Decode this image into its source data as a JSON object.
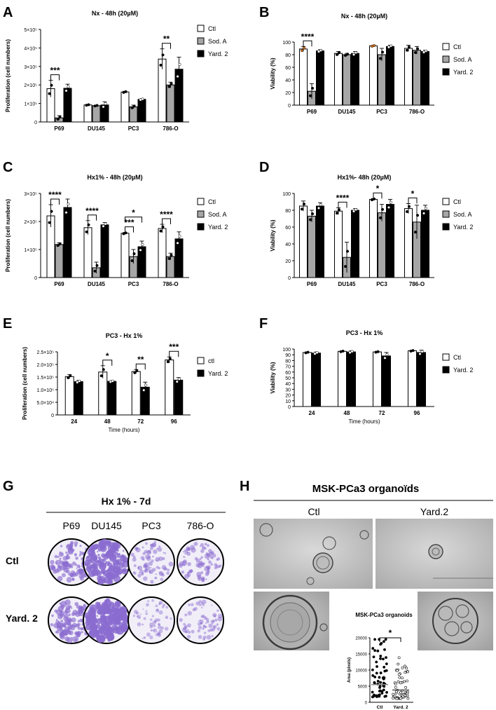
{
  "colors": {
    "ctl": "#ffffff",
    "soda": "#a6a6a6",
    "yard": "#000000",
    "dot_orange": "#e07b22",
    "crystal_violet": "#8a6bd0"
  },
  "chart_data": [
    {
      "panel": "A",
      "type": "bar",
      "title": "Nx - 48h (20µM)",
      "xlabel": "",
      "ylabel": "Proliferation (cell numbers)",
      "ylim": [
        0,
        500000
      ],
      "yticks": [
        "0",
        "1×10⁵",
        "2×10⁵",
        "3×10⁵",
        "4×10⁵",
        "5×10⁵"
      ],
      "categories": [
        "P69",
        "DU145",
        "PC3",
        "786-O"
      ],
      "legend": [
        "Ctl",
        "Sod. A",
        "Yard. 2"
      ],
      "legend_position": "right",
      "series": [
        {
          "name": "Ctl",
          "values": [
            180000,
            92000,
            162000,
            340000
          ],
          "err": [
            45000,
            3000,
            4000,
            55000
          ]
        },
        {
          "name": "Sod. A",
          "values": [
            22000,
            88000,
            82000,
            200000
          ],
          "err": [
            12000,
            3000,
            9000,
            15000
          ]
        },
        {
          "name": "Yard. 2",
          "values": [
            182000,
            92000,
            122000,
            285000
          ],
          "err": [
            22000,
            17000,
            4000,
            65000
          ]
        }
      ],
      "significance": [
        {
          "category": "P69",
          "label": "***",
          "pair": [
            0,
            1
          ]
        },
        {
          "category": "786-O",
          "label": "**",
          "pair": [
            0,
            1
          ]
        }
      ]
    },
    {
      "panel": "B",
      "type": "bar",
      "title": "Nx - 48h (20µM)",
      "xlabel": "",
      "ylabel": "Viability (%)",
      "ylim": [
        0,
        100
      ],
      "yticks": [
        "0",
        "20",
        "40",
        "60",
        "80",
        "100"
      ],
      "categories": [
        "P69",
        "DU145",
        "PC3",
        "786-O"
      ],
      "legend": [
        "Ctl",
        "Sod. A",
        "Yard. 2"
      ],
      "legend_position": "right",
      "series": [
        {
          "name": "Ctl",
          "values": [
            89,
            82,
            94,
            90
          ],
          "err": [
            4,
            3,
            1,
            5
          ]
        },
        {
          "name": "Sod. A",
          "values": [
            22,
            80,
            80,
            87
          ],
          "err": [
            12,
            2,
            10,
            6
          ]
        },
        {
          "name": "Yard. 2",
          "values": [
            86,
            82,
            93,
            85
          ],
          "err": [
            2,
            3,
            2,
            2
          ]
        }
      ],
      "significance": [
        {
          "category": "P69",
          "label": "****",
          "pair": [
            0,
            1
          ]
        }
      ]
    },
    {
      "panel": "C",
      "type": "bar",
      "title": "Hx1% - 48h (20µM)",
      "xlabel": "",
      "ylabel": "Proliferation (cell numbers)",
      "ylim": [
        0,
        300000
      ],
      "yticks": [
        "0",
        "1×10⁵",
        "2×10⁵",
        "3×10⁵"
      ],
      "categories": [
        "P69",
        "DU145",
        "PC3",
        "786-O"
      ],
      "legend": [
        "Ctl",
        "Sod. A",
        "Yard. 2"
      ],
      "legend_position": "right",
      "series": [
        {
          "name": "Ctl",
          "values": [
            220000,
            178000,
            158000,
            175000
          ],
          "err": [
            40000,
            25000,
            3000,
            15000
          ]
        },
        {
          "name": "Sod. A",
          "values": [
            118000,
            35000,
            75000,
            75000
          ],
          "err": [
            6000,
            20000,
            25000,
            12000
          ]
        },
        {
          "name": "Yard. 2",
          "values": [
            250000,
            188000,
            110000,
            138000
          ],
          "err": [
            30000,
            8000,
            20000,
            25000
          ]
        }
      ],
      "significance": [
        {
          "category": "P69",
          "label": "****",
          "pair": [
            0,
            1
          ]
        },
        {
          "category": "DU145",
          "label": "****",
          "pair": [
            0,
            1
          ]
        },
        {
          "category": "PC3",
          "label": "***",
          "pair": [
            0,
            1
          ]
        },
        {
          "category": "PC3",
          "label": "*",
          "pair": [
            0,
            2
          ]
        },
        {
          "category": "786-O",
          "label": "****",
          "pair": [
            0,
            1
          ]
        }
      ]
    },
    {
      "panel": "D",
      "type": "bar",
      "title": "Hx1%- 48h (20µM)",
      "xlabel": "",
      "ylabel": "Viability (%)",
      "ylim": [
        0,
        100
      ],
      "yticks": [
        "0",
        "20",
        "40",
        "60",
        "80",
        "100"
      ],
      "categories": [
        "P69",
        "DU145",
        "PC3",
        "786-O"
      ],
      "legend": [
        "Ctl",
        "Sod. A",
        "Yard. 2"
      ],
      "legend_position": "right",
      "series": [
        {
          "name": "Ctl",
          "values": [
            85,
            79,
            93,
            82
          ],
          "err": [
            6,
            4,
            1,
            6
          ]
        },
        {
          "name": "Sod. A",
          "values": [
            73,
            24,
            77,
            66
          ],
          "err": [
            7,
            18,
            10,
            20
          ]
        },
        {
          "name": "Yard. 2",
          "values": [
            85,
            80,
            87,
            80
          ],
          "err": [
            4,
            2,
            6,
            6
          ]
        }
      ],
      "significance": [
        {
          "category": "DU145",
          "label": "****",
          "pair": [
            0,
            1
          ]
        },
        {
          "category": "PC3",
          "label": "*",
          "pair": [
            0,
            1
          ]
        },
        {
          "category": "786-O",
          "label": "*",
          "pair": [
            0,
            1
          ]
        }
      ]
    },
    {
      "panel": "E",
      "type": "bar",
      "title": "PC3 - Hx 1%",
      "xlabel": "Time (hours)",
      "ylabel": "Proliferation (cell numbers)",
      "ylim": [
        0,
        250000
      ],
      "yticks": [
        "0",
        "5.0×10⁴",
        "1.0×10⁵",
        "1.5×10⁵",
        "2.0×10⁵",
        "2.5×10⁵"
      ],
      "categories": [
        "24",
        "48",
        "72",
        "96"
      ],
      "legend": [
        "ctl",
        "Yard. 2"
      ],
      "legend_position": "right",
      "series": [
        {
          "name": "ctl",
          "values": [
            152000,
            170000,
            172000,
            218000
          ],
          "err": [
            8000,
            25000,
            8000,
            12000
          ]
        },
        {
          "name": "Yard. 2",
          "values": [
            132000,
            133000,
            110000,
            138000
          ],
          "err": [
            5000,
            3000,
            20000,
            10000
          ]
        }
      ],
      "significance": [
        {
          "category": "48",
          "label": "*",
          "pair": [
            0,
            1
          ]
        },
        {
          "category": "72",
          "label": "**",
          "pair": [
            0,
            1
          ]
        },
        {
          "category": "96",
          "label": "***",
          "pair": [
            0,
            1
          ]
        }
      ]
    },
    {
      "panel": "F",
      "type": "bar",
      "title": "PC3 - Hx 1%",
      "xlabel": "Time (hours)",
      "ylabel": "Viability (%)",
      "ylim": [
        0,
        100
      ],
      "yticks": [
        "0",
        "10",
        "20",
        "30",
        "40",
        "50",
        "60",
        "70",
        "80",
        "90",
        "100"
      ],
      "categories": [
        "24",
        "48",
        "72",
        "96"
      ],
      "legend": [
        "Ctl",
        "Yard. 2"
      ],
      "legend_position": "right",
      "series": [
        {
          "name": "Ctl",
          "values": [
            94,
            96,
            95,
            97
          ],
          "err": [
            1,
            1,
            1,
            1
          ]
        },
        {
          "name": "Yard. 2",
          "values": [
            93,
            95,
            88,
            94
          ],
          "err": [
            2,
            2,
            6,
            4
          ]
        }
      ],
      "significance": []
    },
    {
      "panel": "H-inset",
      "type": "scatter",
      "title": "MSK-PCa3 organoids",
      "xlabel": "",
      "ylabel": "Area (pixels)",
      "ylim": [
        0,
        20000
      ],
      "yticks": [
        "0",
        "5000",
        "10000",
        "15000",
        "20000"
      ],
      "categories": [
        "Ctl",
        "Yard. 2"
      ],
      "series": [
        {
          "name": "Ctl",
          "median": 5500
        },
        {
          "name": "Yard. 2",
          "median": 3800
        }
      ],
      "significance": [
        {
          "label": "*",
          "pair": [
            0,
            1
          ]
        }
      ]
    }
  ],
  "panel_g": {
    "letter": "G",
    "title": "Hx 1% - 7d",
    "columns": [
      "P69",
      "DU145",
      "PC3",
      "786-O"
    ],
    "rows": [
      "Ctl",
      "Yard. 2"
    ],
    "wells": [
      [
        0.55,
        0.9,
        0.3,
        0.35
      ],
      [
        0.6,
        1.0,
        0.15,
        0.25
      ]
    ]
  },
  "panel_h": {
    "letter": "H",
    "title": "MSK-PCa3 organoïds",
    "columns": [
      "Ctl",
      "Yard.2"
    ]
  }
}
